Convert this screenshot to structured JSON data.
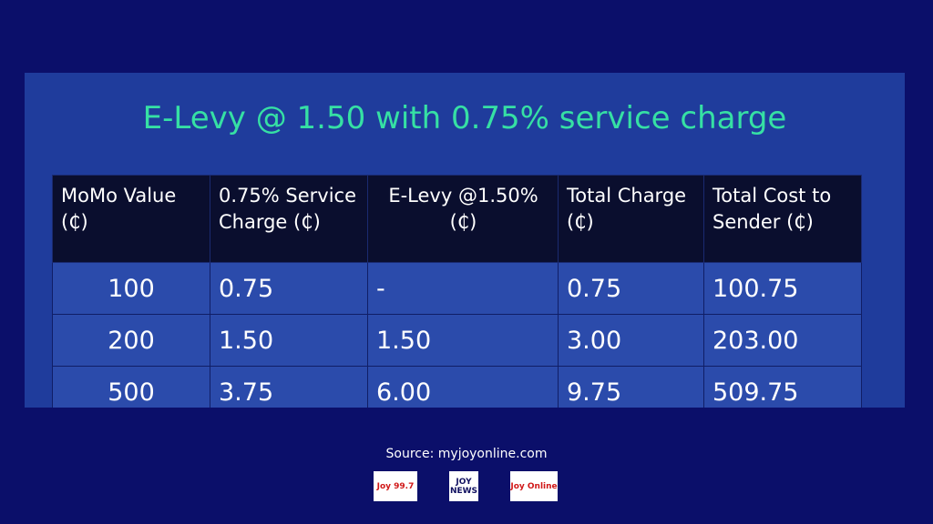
{
  "header": {
    "title": "E-Levy @ 1.50 with 0.75% service charge"
  },
  "table": {
    "columns": [
      "MoMo Value (₵)",
      "0.75% Service Charge (₵)",
      "E-Levy @1.50% (₵)",
      "Total Charge (₵)",
      "Total Cost to Sender (₵)"
    ],
    "rows": [
      [
        "100",
        "0.75",
        "-",
        "0.75",
        "100.75"
      ],
      [
        "200",
        "1.50",
        "1.50",
        "3.00",
        "203.00"
      ],
      [
        "500",
        "3.75",
        "6.00",
        "9.75",
        "509.75"
      ]
    ]
  },
  "footer": {
    "source": "Source: myjoyonline.com",
    "logos": [
      "Joy 99.7",
      "JOY NEWS",
      "Joy Online"
    ]
  }
}
